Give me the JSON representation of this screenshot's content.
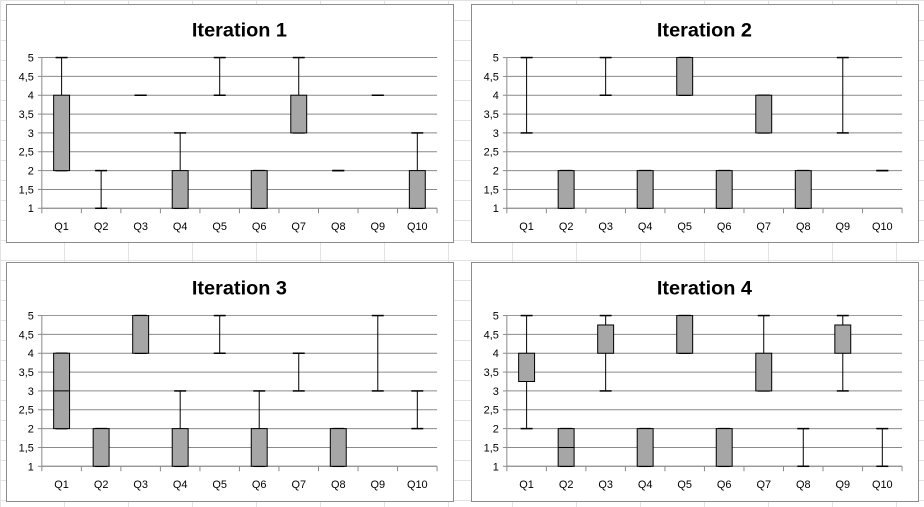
{
  "chart_data": [
    {
      "type": "box",
      "title": "Iteration 1",
      "categories": [
        "Q1",
        "Q2",
        "Q3",
        "Q4",
        "Q5",
        "Q6",
        "Q7",
        "Q8",
        "Q9",
        "Q10"
      ],
      "y_ticks": [
        "1",
        "1,5",
        "2",
        "2,5",
        "3",
        "3,5",
        "4",
        "4,5",
        "5"
      ],
      "ylim": [
        1,
        5
      ],
      "grid": true,
      "box_color": "#a6a6a6",
      "boxes": [
        {
          "min": 2,
          "q1": 2,
          "median": 2,
          "q3": 4,
          "max": 5
        },
        {
          "min": 1,
          "q1": 2,
          "median": 2,
          "q3": 2,
          "max": 2
        },
        {
          "min": 4,
          "q1": 4,
          "median": 4,
          "q3": 4,
          "max": 4
        },
        {
          "min": 1,
          "q1": 1,
          "median": 1,
          "q3": 2,
          "max": 3
        },
        {
          "min": 4,
          "q1": 4,
          "median": 4,
          "q3": 4,
          "max": 5
        },
        {
          "min": 1,
          "q1": 1,
          "median": 1,
          "q3": 2,
          "max": 2
        },
        {
          "min": 3,
          "q1": 3,
          "median": 3,
          "q3": 4,
          "max": 5
        },
        {
          "min": 2,
          "q1": 2,
          "median": 2,
          "q3": 2,
          "max": 2
        },
        {
          "min": 4,
          "q1": 4,
          "median": 4,
          "q3": 4,
          "max": 4
        },
        {
          "min": 1,
          "q1": 1,
          "median": 1,
          "q3": 2,
          "max": 3
        }
      ]
    },
    {
      "type": "box",
      "title": "Iteration 2",
      "categories": [
        "Q1",
        "Q2",
        "Q3",
        "Q4",
        "Q5",
        "Q6",
        "Q7",
        "Q8",
        "Q9",
        "Q10"
      ],
      "y_ticks": [
        "1",
        "1,5",
        "2",
        "2,5",
        "3",
        "3,5",
        "4",
        "4,5",
        "5"
      ],
      "ylim": [
        1,
        5
      ],
      "grid": true,
      "box_color": "#a6a6a6",
      "boxes": [
        {
          "min": 3,
          "q1": 5,
          "median": 5,
          "q3": 5,
          "max": 5
        },
        {
          "min": 1,
          "q1": 1,
          "median": 1,
          "q3": 2,
          "max": 2
        },
        {
          "min": 4,
          "q1": 5,
          "median": 5,
          "q3": 5,
          "max": 5
        },
        {
          "min": 1,
          "q1": 1,
          "median": 1,
          "q3": 2,
          "max": 2
        },
        {
          "min": 4,
          "q1": 4,
          "median": 4,
          "q3": 5,
          "max": 5
        },
        {
          "min": 1,
          "q1": 1,
          "median": 1,
          "q3": 2,
          "max": 2
        },
        {
          "min": 3,
          "q1": 3,
          "median": 3,
          "q3": 4,
          "max": 4
        },
        {
          "min": 1,
          "q1": 1,
          "median": 1,
          "q3": 2,
          "max": 2
        },
        {
          "min": 3,
          "q1": 5,
          "median": 5,
          "q3": 5,
          "max": 5
        },
        {
          "min": 2,
          "q1": 2,
          "median": 2,
          "q3": 2,
          "max": 2
        }
      ]
    },
    {
      "type": "box",
      "title": "Iteration 3",
      "categories": [
        "Q1",
        "Q2",
        "Q3",
        "Q4",
        "Q5",
        "Q6",
        "Q7",
        "Q8",
        "Q9",
        "Q10"
      ],
      "y_ticks": [
        "1",
        "1,5",
        "2",
        "2,5",
        "3",
        "3,5",
        "4",
        "4,5",
        "5"
      ],
      "ylim": [
        1,
        5
      ],
      "grid": true,
      "box_color": "#a6a6a6",
      "boxes": [
        {
          "min": 2,
          "q1": 2,
          "median": 3,
          "q3": 4,
          "max": 4
        },
        {
          "min": 1,
          "q1": 1,
          "median": 1,
          "q3": 2,
          "max": 2
        },
        {
          "min": 4,
          "q1": 4,
          "median": 4,
          "q3": 5,
          "max": 5
        },
        {
          "min": 1,
          "q1": 1,
          "median": 1,
          "q3": 2,
          "max": 3
        },
        {
          "min": 4,
          "q1": 5,
          "median": 5,
          "q3": 5,
          "max": 5
        },
        {
          "min": 1,
          "q1": 1,
          "median": 1,
          "q3": 2,
          "max": 3
        },
        {
          "min": 3,
          "q1": 4,
          "median": 4,
          "q3": 4,
          "max": 4
        },
        {
          "min": 1,
          "q1": 1,
          "median": 1,
          "q3": 2,
          "max": 2
        },
        {
          "min": 3,
          "q1": 5,
          "median": 5,
          "q3": 5,
          "max": 5
        },
        {
          "min": 2,
          "q1": 3,
          "median": 3,
          "q3": 3,
          "max": 3
        }
      ]
    },
    {
      "type": "box",
      "title": "Iteration 4",
      "categories": [
        "Q1",
        "Q2",
        "Q3",
        "Q4",
        "Q5",
        "Q6",
        "Q7",
        "Q8",
        "Q9",
        "Q10"
      ],
      "y_ticks": [
        "1",
        "1,5",
        "2",
        "2,5",
        "3",
        "3,5",
        "4",
        "4,5",
        "5"
      ],
      "ylim": [
        1,
        5
      ],
      "grid": true,
      "box_color": "#a6a6a6",
      "boxes": [
        {
          "min": 2,
          "q1": 3.25,
          "median": 4,
          "q3": 4,
          "max": 5
        },
        {
          "min": 1,
          "q1": 1,
          "median": 1.5,
          "q3": 2,
          "max": 2
        },
        {
          "min": 3,
          "q1": 4,
          "median": 4,
          "q3": 4.75,
          "max": 5
        },
        {
          "min": 1,
          "q1": 1,
          "median": 1,
          "q3": 2,
          "max": 2
        },
        {
          "min": 4,
          "q1": 4,
          "median": 4,
          "q3": 5,
          "max": 5
        },
        {
          "min": 1,
          "q1": 1,
          "median": 1,
          "q3": 2,
          "max": 2
        },
        {
          "min": 3,
          "q1": 3,
          "median": 3,
          "q3": 4,
          "max": 5
        },
        {
          "min": 1,
          "q1": 2,
          "median": 2,
          "q3": 2,
          "max": 2
        },
        {
          "min": 3,
          "q1": 4,
          "median": 4,
          "q3": 4.75,
          "max": 5
        },
        {
          "min": 1,
          "q1": 2,
          "median": 2,
          "q3": 2,
          "max": 2
        }
      ]
    }
  ]
}
